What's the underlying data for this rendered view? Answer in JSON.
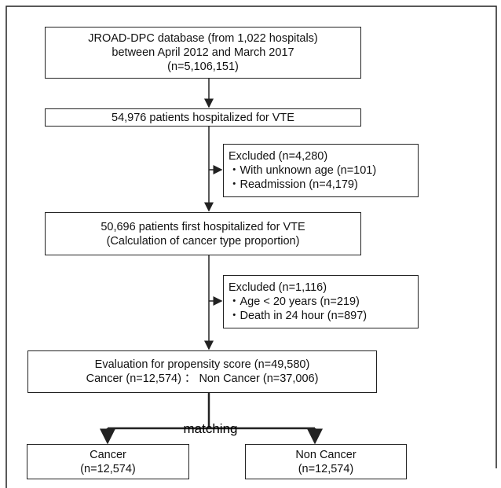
{
  "nodes": [
    {
      "lines": [
        "JROAD-DPC database (from 1,022 hospitals)",
        "between April 2012 and March 2017",
        "(n=5,106,151)"
      ]
    },
    {
      "lines": [
        "54,976 patients hospitalized for VTE"
      ]
    },
    {
      "lines": [
        "Excluded  (n=4,280)",
        "・With unknown age (n=101)",
        "・Readmission (n=4,179)"
      ]
    },
    {
      "lines": [
        "50,696 patients first hospitalized for VTE",
        "(Calculation of cancer type proportion)"
      ]
    },
    {
      "lines": [
        "Excluded (n=1,116)",
        "・Age < 20 years (n=219)",
        "・Death in 24 hour (n=897)"
      ]
    },
    {
      "lines": [
        "Evaluation for propensity score (n=49,580)",
        "Cancer (n=12,574) ： Non Cancer (n=37,006)"
      ]
    },
    {
      "lines": [
        "Cancer",
        "(n=12,574)"
      ]
    },
    {
      "lines": [
        "Non Cancer",
        "(n=12,574)"
      ]
    }
  ],
  "edge_label": "matching"
}
